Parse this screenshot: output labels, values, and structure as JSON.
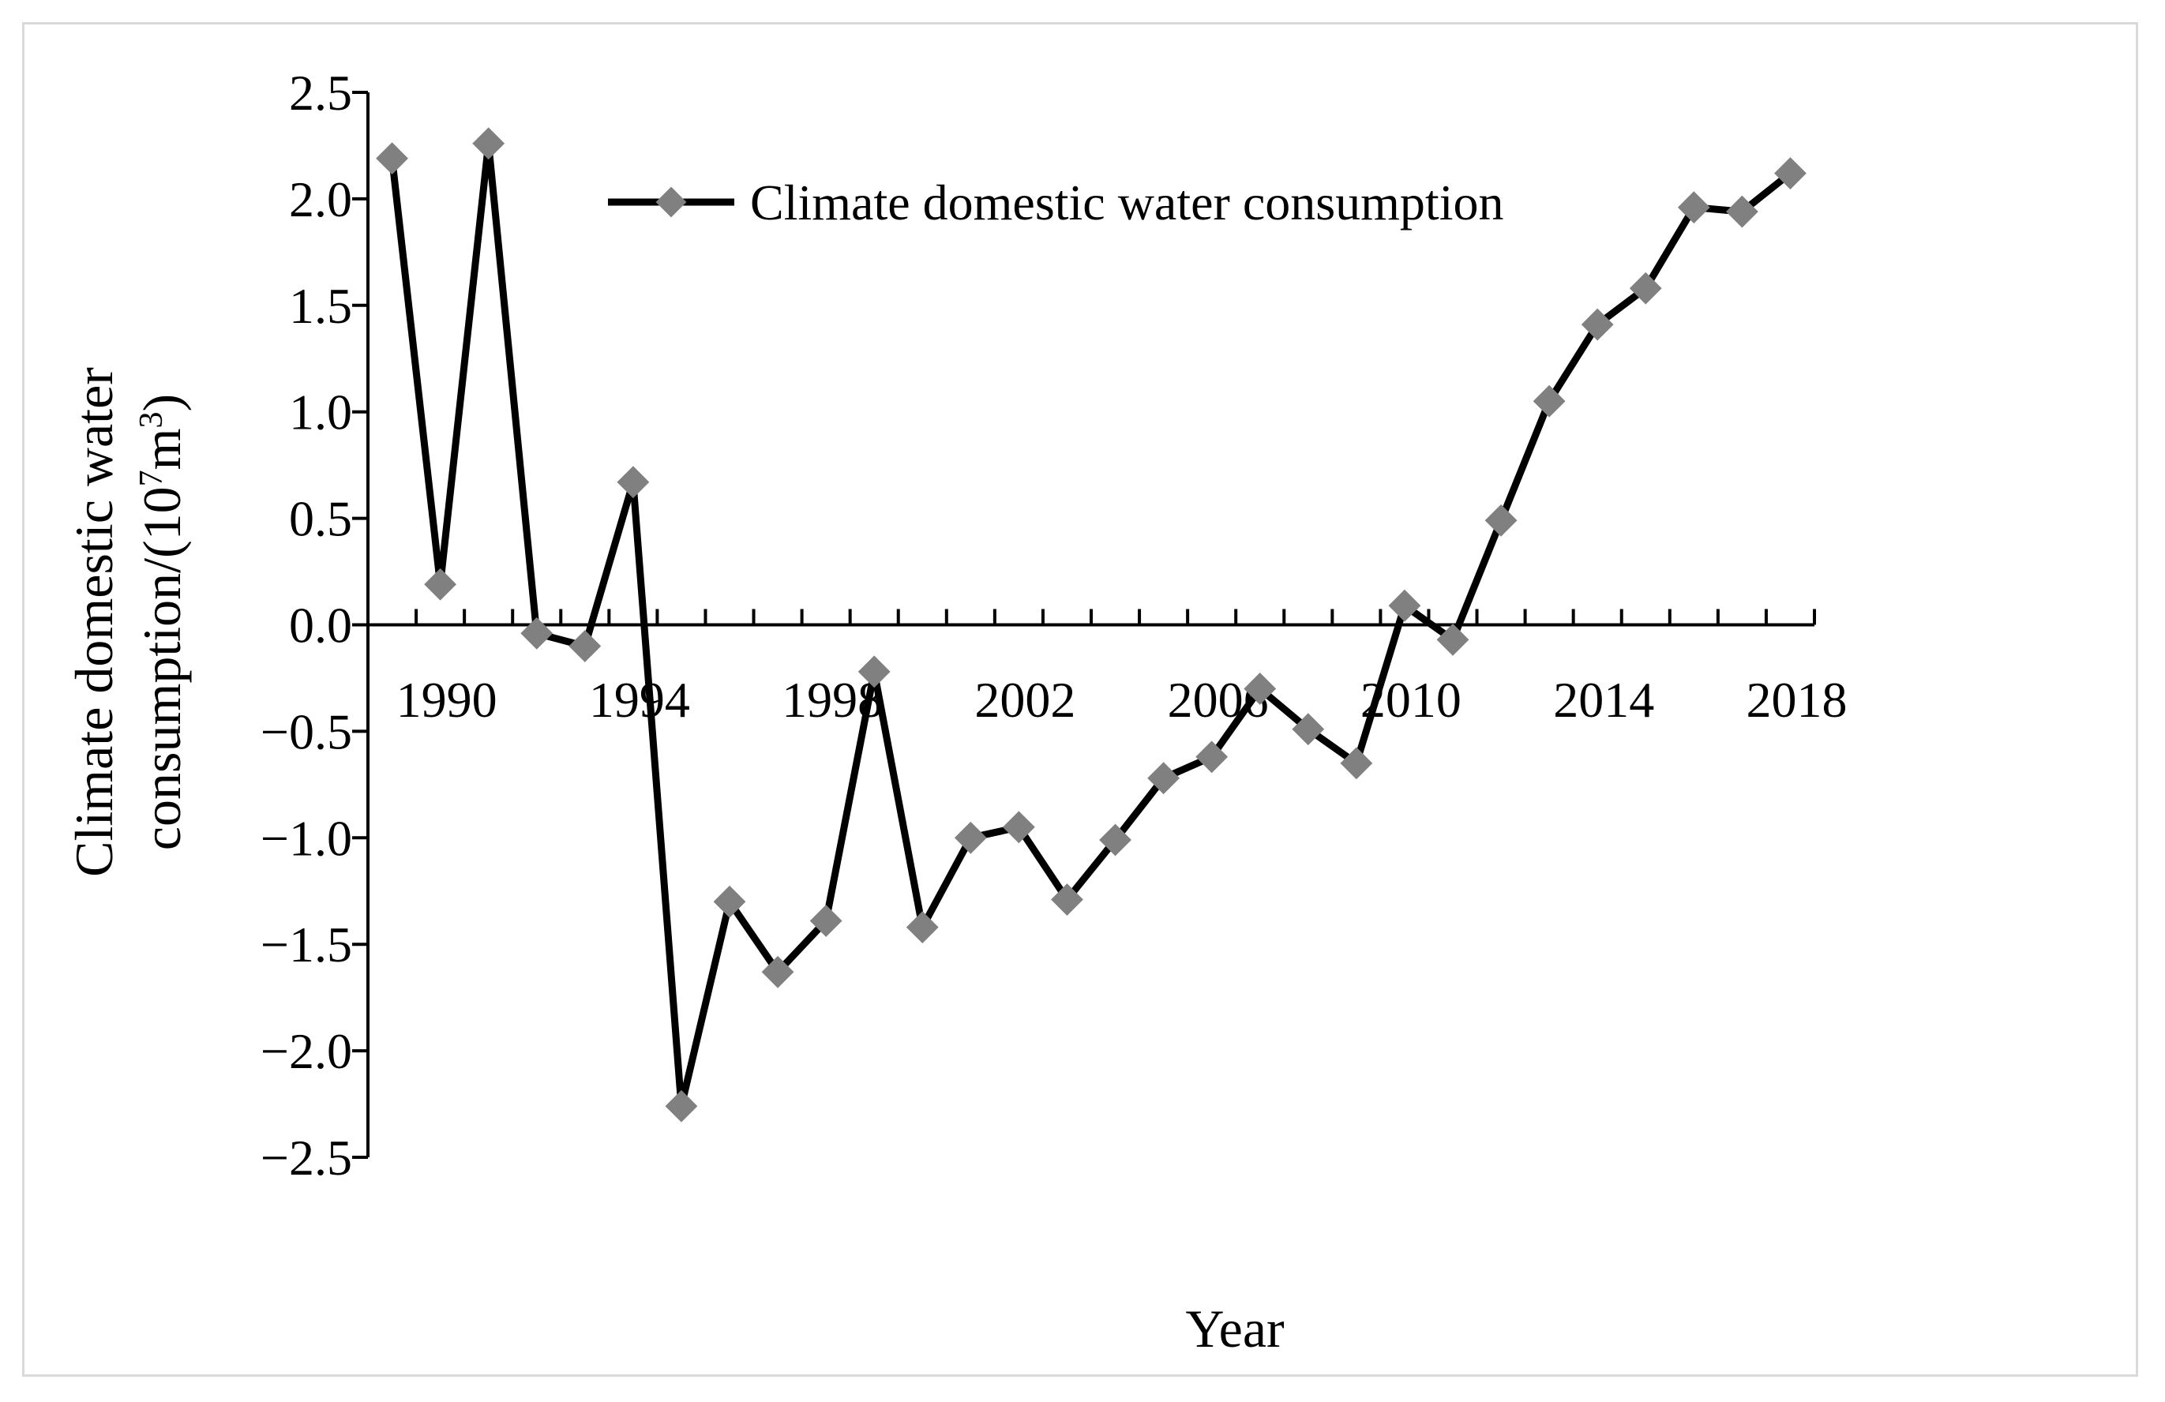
{
  "chart_data": {
    "type": "line",
    "title": "",
    "xlabel": "Year",
    "ylabel_line1": "Climate domestic water",
    "ylabel_line2_prefix": "consumption/(10",
    "ylabel_sup1": "7",
    "ylabel_mid": "m",
    "ylabel_sup2": "3",
    "ylabel_suffix": ")",
    "ylim": [
      -2.5,
      2.5
    ],
    "xlim": [
      1988.5,
      2018.5
    ],
    "ytick_values": [
      2.5,
      2.0,
      1.5,
      1.0,
      0.5,
      0.0,
      -0.5,
      -1.0,
      -1.5,
      -2.0,
      -2.5
    ],
    "ytick_labels": [
      "2.5",
      "2.0",
      "1.5",
      "1.0",
      "0.5",
      "0.0",
      "−0.5",
      "−1.0",
      "−1.5",
      "−2.0",
      "−2.5"
    ],
    "xtick_values": [
      1990,
      1994,
      1998,
      2002,
      2006,
      2010,
      2014,
      2018
    ],
    "xtick_labels": [
      "1990",
      "1994",
      "1998",
      "2002",
      "2006",
      "2010",
      "2014",
      "2018"
    ],
    "legend_placement": "top-center",
    "series": [
      {
        "name": "Climate domestic water consumption",
        "line_color": "#000000",
        "marker_color": "#808080",
        "marker": "diamond",
        "x": [
          1989,
          1990,
          1991,
          1992,
          1993,
          1994,
          1995,
          1996,
          1997,
          1998,
          1999,
          2000,
          2001,
          2002,
          2003,
          2004,
          2005,
          2006,
          2007,
          2008,
          2009,
          2010,
          2011,
          2012,
          2013,
          2014,
          2015,
          2016,
          2017,
          2018
        ],
        "values": [
          2.19,
          0.19,
          2.26,
          -0.04,
          -0.1,
          0.67,
          -2.26,
          -1.3,
          -1.63,
          -1.39,
          -0.22,
          -1.42,
          -1.0,
          -0.95,
          -1.29,
          -1.01,
          -0.72,
          -0.62,
          -0.3,
          -0.49,
          -0.65,
          0.09,
          -0.07,
          0.49,
          1.05,
          1.41,
          1.58,
          1.96,
          1.94,
          2.12
        ]
      }
    ]
  }
}
